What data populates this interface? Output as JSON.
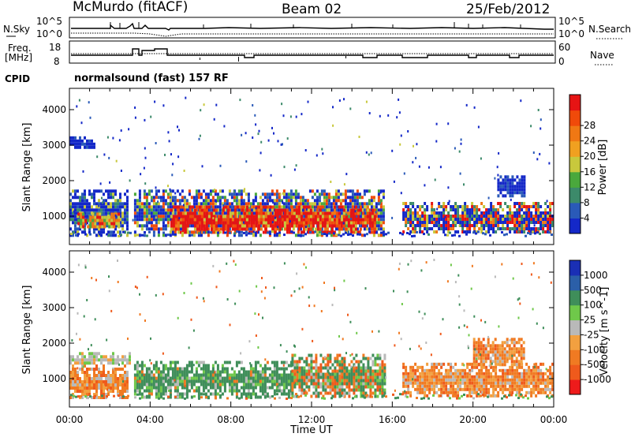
{
  "header": {
    "station": "McMurdo (fitACF)",
    "beam": "Beam 02",
    "date": "25/Feb/2012"
  },
  "status_panel": {
    "nsky_label": "N.Sky",
    "nsky_ticks": [
      "10^5",
      "10^0"
    ],
    "nsearch_label": "N.Search",
    "nsearch_ticks": [
      "10^5",
      "10^0"
    ],
    "freq_label_1": "Freq.",
    "freq_label_2": "[MHz]",
    "freq_ticks": [
      "18",
      "8"
    ],
    "nave_label": "Nave",
    "nave_ticks": [
      "60",
      "0"
    ],
    "cpid_label": "CPID",
    "cpid_value": "normalsound (fast) 157 RF"
  },
  "colors": {
    "power_scale": [
      "#1428c8",
      "#2a5ab8",
      "#3c8a6a",
      "#4aa83c",
      "#c8c83c",
      "#f0a020",
      "#f07814",
      "#f04a0a",
      "#e61414"
    ],
    "velocity_scale": [
      "#ee1b1b",
      "#ef5a1c",
      "#f07a22",
      "#f2a040",
      "#b9b9b9",
      "#6fc84a",
      "#3f8e5a",
      "#2b5fa8",
      "#1a2fb5"
    ]
  },
  "chart_data": [
    {
      "type": "heatmap",
      "title": "",
      "xlabel": "Time UT",
      "ylabel": "Slant Range [km]",
      "x_tick_labels": [
        "00:00",
        "04:00",
        "08:00",
        "12:00",
        "16:00",
        "20:00",
        "00:00"
      ],
      "y_tick_labels": [
        "1000",
        "2000",
        "3000",
        "4000"
      ],
      "ylim": [
        200,
        4600
      ],
      "colorbar_label": "Power [dB]",
      "colorbar_ticks": [
        "4",
        "8",
        "12",
        "16",
        "20",
        "24",
        "28"
      ],
      "regions": [
        {
          "t_start": 0.0,
          "t_end": 2.9,
          "range_start": 450,
          "range_end": 1750,
          "level": "mixed-low"
        },
        {
          "t_start": 0.4,
          "t_end": 2.4,
          "range_start": 700,
          "range_end": 1100,
          "level": "medium"
        },
        {
          "t_start": 3.2,
          "t_end": 15.6,
          "range_start": 500,
          "range_end": 1750,
          "level": "mixed-high"
        },
        {
          "t_start": 5.0,
          "t_end": 15.2,
          "range_start": 550,
          "range_end": 1300,
          "level": "high"
        },
        {
          "t_start": 0.0,
          "t_end": 1.2,
          "range_start": 2950,
          "range_end": 3250,
          "level": "low"
        },
        {
          "t_start": 16.5,
          "t_end": 24.0,
          "range_start": 550,
          "range_end": 1400,
          "level": "mixed-medium"
        },
        {
          "t_start": 21.2,
          "t_end": 22.6,
          "range_start": 1600,
          "range_end": 2150,
          "level": "low"
        }
      ]
    },
    {
      "type": "heatmap",
      "title": "",
      "xlabel": "Time UT",
      "ylabel": "Slant Range [km]",
      "x_tick_labels": [
        "00:00",
        "04:00",
        "08:00",
        "12:00",
        "16:00",
        "20:00",
        "00:00"
      ],
      "y_tick_labels": [
        "1000",
        "2000",
        "3000",
        "4000"
      ],
      "ylim": [
        200,
        4600
      ],
      "colorbar_label": "Velocity [m s^-1]",
      "colorbar_ticks": [
        "1000",
        "500",
        "100",
        "25",
        "-25",
        "-100",
        "-500",
        "-1000"
      ],
      "regions": [
        {
          "t_start": 0.0,
          "t_end": 2.9,
          "range_start": 450,
          "range_end": 1400,
          "level": "negative"
        },
        {
          "t_start": 0.0,
          "t_end": 3.0,
          "range_start": 1400,
          "range_end": 1750,
          "level": "near-zero"
        },
        {
          "t_start": 3.2,
          "t_end": 11.0,
          "range_start": 500,
          "range_end": 1500,
          "level": "positive"
        },
        {
          "t_start": 11.0,
          "t_end": 15.6,
          "range_start": 500,
          "range_end": 1700,
          "level": "mixed"
        },
        {
          "t_start": 16.5,
          "t_end": 24.0,
          "range_start": 550,
          "range_end": 1450,
          "level": "negative"
        },
        {
          "t_start": 20.0,
          "t_end": 22.5,
          "range_start": 1400,
          "range_end": 2150,
          "level": "negative"
        }
      ]
    }
  ]
}
